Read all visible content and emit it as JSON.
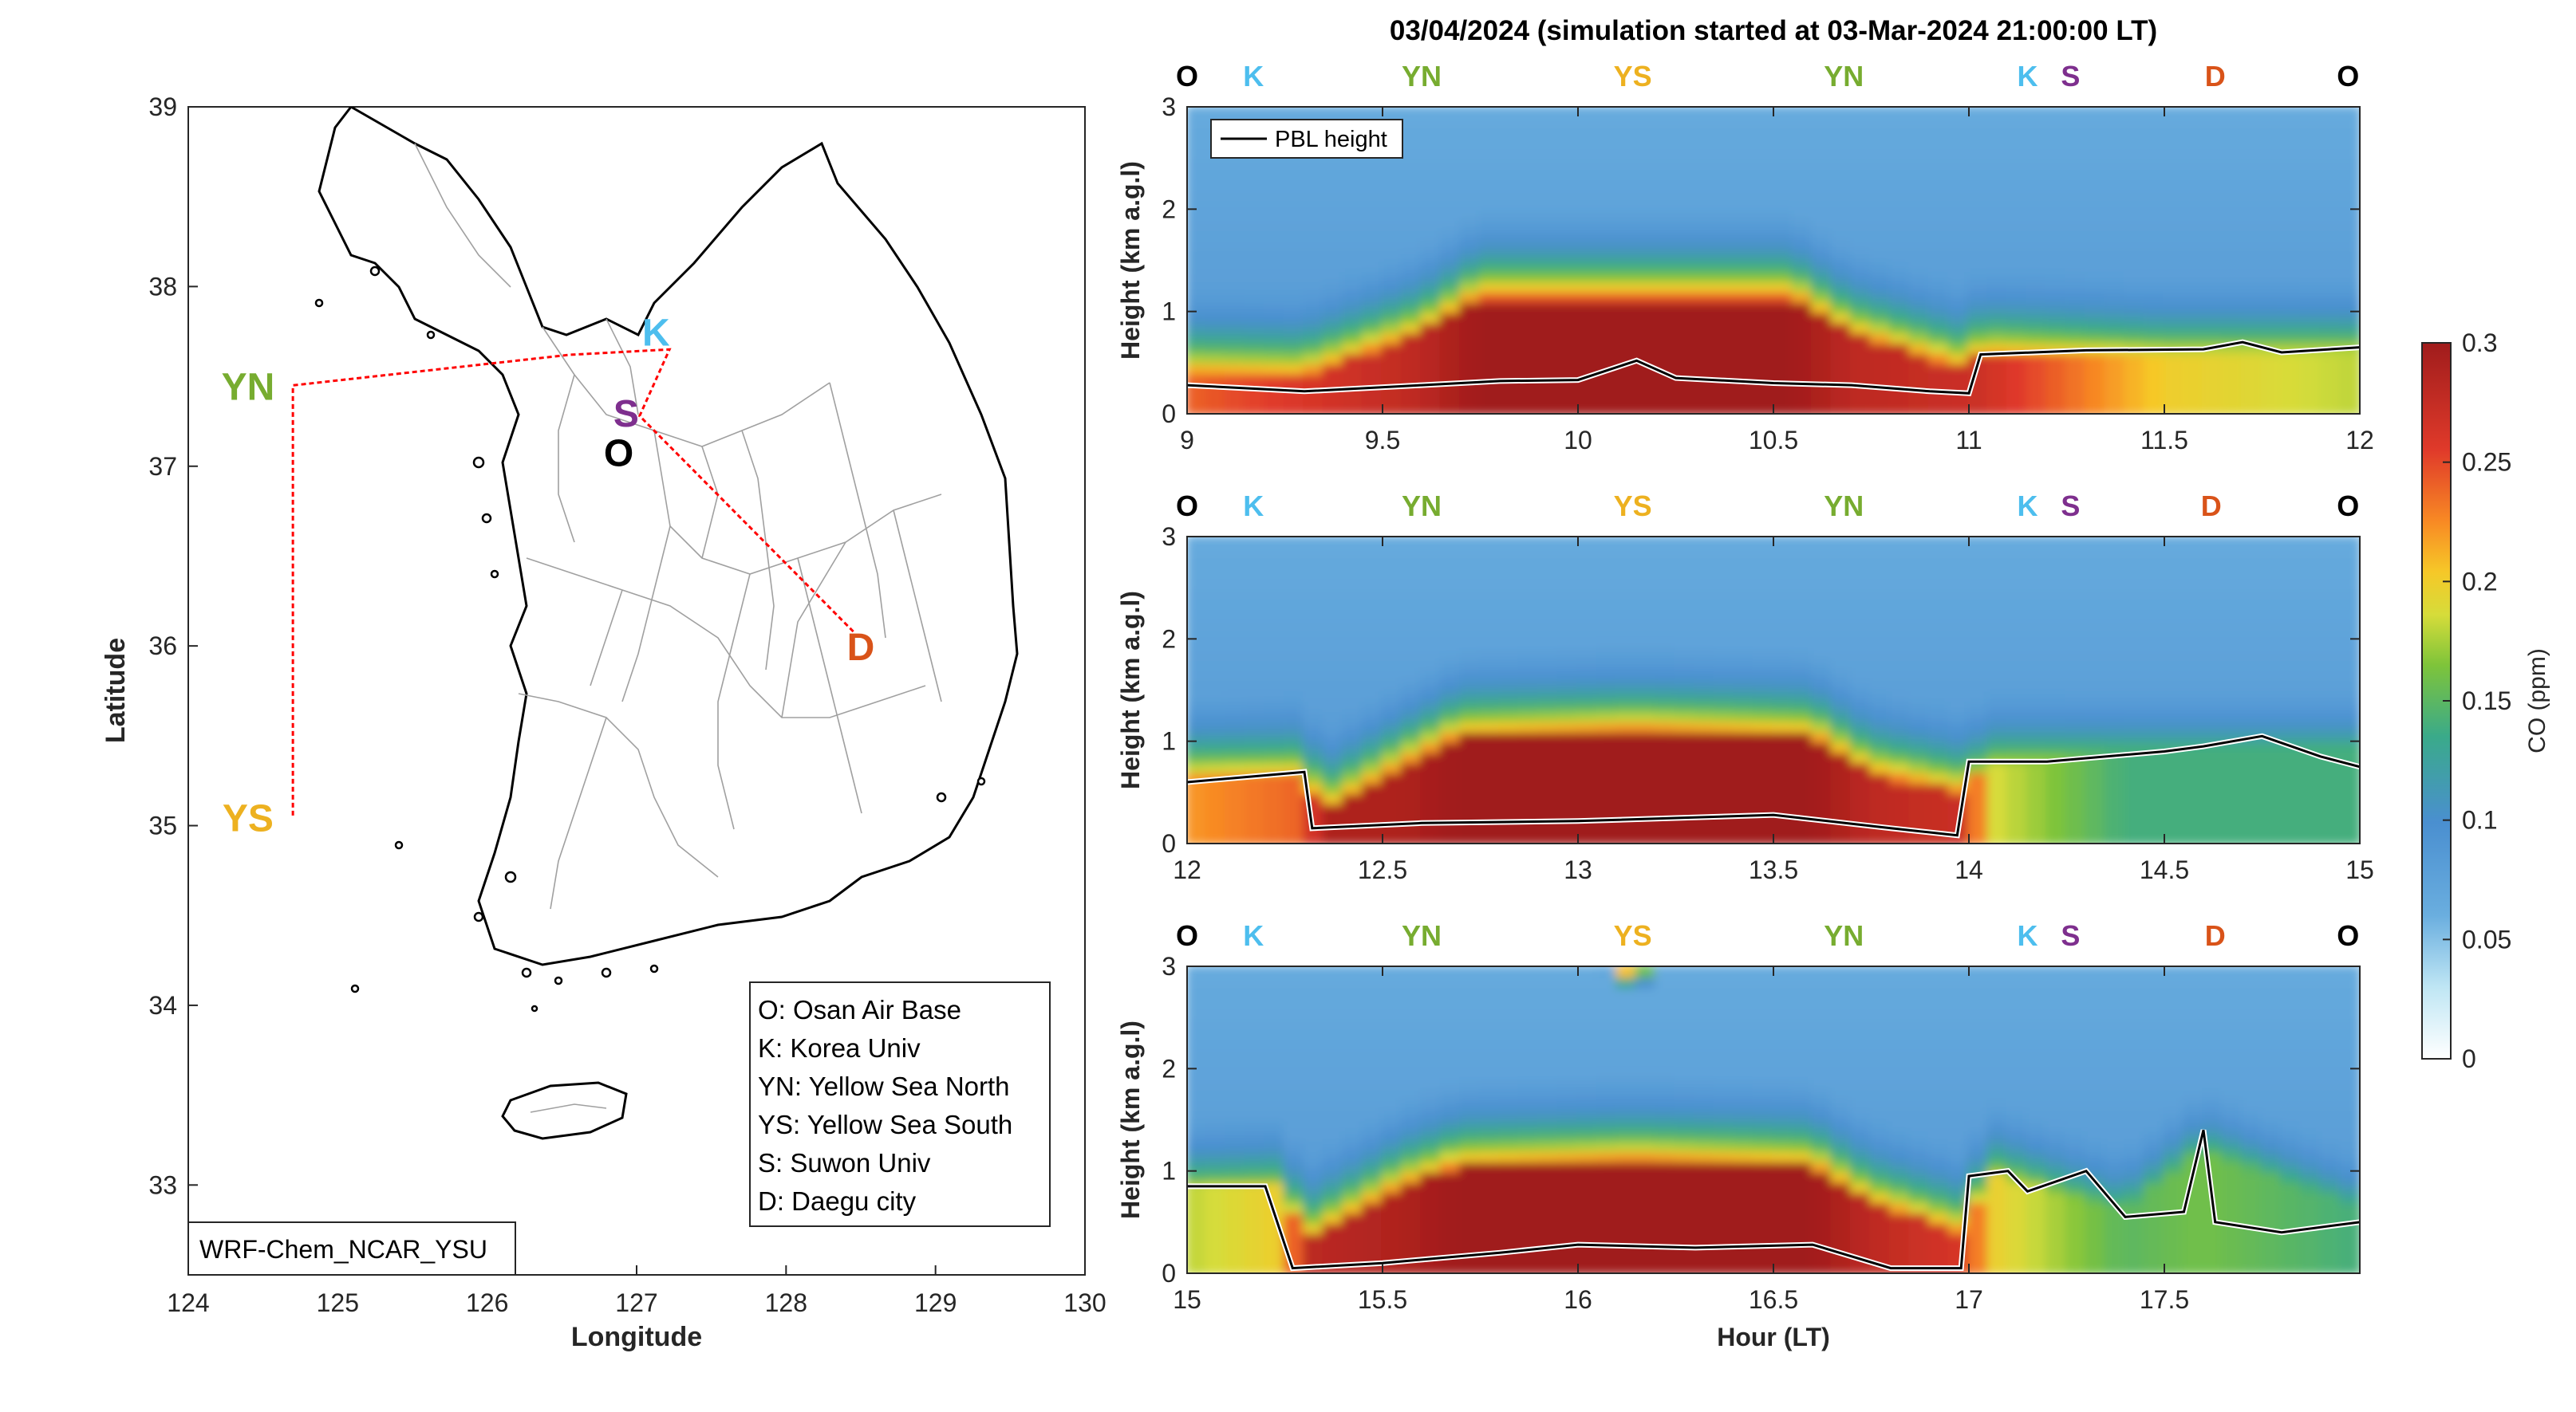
{
  "chart_data": [
    {
      "type": "map",
      "xlabel": "Longitude",
      "ylabel": "Latitude",
      "xlim": [
        124,
        130
      ],
      "ylim": [
        32.5,
        39
      ],
      "xticks": [
        124,
        125,
        126,
        127,
        128,
        129,
        130
      ],
      "yticks": [
        33,
        34,
        35,
        36,
        37,
        38,
        39
      ],
      "model_label": "WRF-Chem_NCAR_YSU",
      "flight_track": [
        [
          128.45,
          36.08
        ],
        [
          127.02,
          37.28
        ],
        [
          127.22,
          37.65
        ],
        [
          126.55,
          37.62
        ],
        [
          124.7,
          37.45
        ],
        [
          124.7,
          35.05
        ]
      ],
      "sites": [
        {
          "code": "YN",
          "lon": 124.4,
          "lat": 37.45,
          "color": "#77ac30"
        },
        {
          "code": "YS",
          "lon": 124.4,
          "lat": 35.05,
          "color": "#edb120"
        },
        {
          "code": "K",
          "lon": 127.13,
          "lat": 37.75,
          "color": "#4dbeee"
        },
        {
          "code": "S",
          "lon": 126.93,
          "lat": 37.3,
          "color": "#7e2f8e"
        },
        {
          "code": "O",
          "lon": 126.88,
          "lat": 37.08,
          "color": "#000000"
        },
        {
          "code": "D",
          "lon": 128.5,
          "lat": 36.0,
          "color": "#d95319"
        }
      ],
      "legend": [
        "O: Osan Air Base",
        "K: Korea Univ",
        "YN: Yellow Sea North",
        "YS: Yellow Sea South",
        "S: Suwon Univ",
        "D: Daegu city"
      ]
    },
    {
      "type": "heatmap",
      "title": "03/04/2024 (simulation started at 03-Mar-2024 21:00:00 LT)",
      "xlabel": "Hour (LT)",
      "ylabel": "Height (km a.g.l)",
      "colorbar_label": "CO (ppm)",
      "clim": [
        0,
        0.3
      ],
      "colorbar_ticks": [
        0,
        0.05,
        0.1,
        0.15,
        0.2,
        0.25,
        0.3
      ],
      "line_legend": "PBL height",
      "panels": [
        {
          "xlim": [
            9,
            12
          ],
          "xticks": [
            "9",
            "9.5",
            "10",
            "10.5",
            "11",
            "11.5",
            "12"
          ],
          "yticks": [
            "0",
            "1",
            "2",
            "3"
          ],
          "site_markers": [
            {
              "code": "O",
              "x": 9.0
            },
            {
              "code": "K",
              "x": 9.17
            },
            {
              "code": "YN",
              "x": 9.6
            },
            {
              "code": "YS",
              "x": 10.14
            },
            {
              "code": "YN",
              "x": 10.68
            },
            {
              "code": "K",
              "x": 11.15
            },
            {
              "code": "S",
              "x": 11.26
            },
            {
              "code": "D",
              "x": 11.63
            },
            {
              "code": "O",
              "x": 11.97
            }
          ],
          "pbl_height": [
            [
              9.0,
              0.28
            ],
            [
              9.3,
              0.22
            ],
            [
              9.6,
              0.28
            ],
            [
              9.8,
              0.32
            ],
            [
              10.0,
              0.33
            ],
            [
              10.15,
              0.52
            ],
            [
              10.25,
              0.35
            ],
            [
              10.5,
              0.3
            ],
            [
              10.7,
              0.28
            ],
            [
              10.9,
              0.22
            ],
            [
              11.0,
              0.2
            ],
            [
              11.03,
              0.58
            ],
            [
              11.3,
              0.62
            ],
            [
              11.6,
              0.63
            ],
            [
              11.7,
              0.7
            ],
            [
              11.8,
              0.6
            ],
            [
              12.0,
              0.65
            ]
          ],
          "co_profile": [
            {
              "x": 9.0,
              "surface": 0.24,
              "top": 0.45
            },
            {
              "x": 9.3,
              "surface": 0.26,
              "top": 0.4
            },
            {
              "x": 9.6,
              "surface": 0.28,
              "top": 0.8
            },
            {
              "x": 9.75,
              "surface": 0.3,
              "top": 1.15
            },
            {
              "x": 10.15,
              "surface": 0.3,
              "top": 1.15
            },
            {
              "x": 10.55,
              "surface": 0.3,
              "top": 1.15
            },
            {
              "x": 10.7,
              "surface": 0.28,
              "top": 0.8
            },
            {
              "x": 11.0,
              "surface": 0.27,
              "top": 0.45
            },
            {
              "x": 11.03,
              "surface": 0.27,
              "top": 0.6
            },
            {
              "x": 11.5,
              "surface": 0.2,
              "top": 0.62
            },
            {
              "x": 12.0,
              "surface": 0.18,
              "top": 0.65
            }
          ]
        },
        {
          "xlim": [
            12,
            15
          ],
          "xticks": [
            "12",
            "12.5",
            "13",
            "13.5",
            "14",
            "14.5",
            "15"
          ],
          "yticks": [
            "0",
            "1",
            "2",
            "3"
          ],
          "site_markers": [
            {
              "code": "O",
              "x": 12.0
            },
            {
              "code": "K",
              "x": 12.17
            },
            {
              "code": "YN",
              "x": 12.6
            },
            {
              "code": "YS",
              "x": 13.14
            },
            {
              "code": "YN",
              "x": 13.68
            },
            {
              "code": "K",
              "x": 14.15
            },
            {
              "code": "S",
              "x": 14.26
            },
            {
              "code": "D",
              "x": 14.62
            },
            {
              "code": "O",
              "x": 14.97
            }
          ],
          "pbl_height": [
            [
              12.0,
              0.6
            ],
            [
              12.15,
              0.65
            ],
            [
              12.3,
              0.7
            ],
            [
              12.32,
              0.15
            ],
            [
              12.6,
              0.2
            ],
            [
              13.0,
              0.22
            ],
            [
              13.5,
              0.28
            ],
            [
              13.8,
              0.15
            ],
            [
              13.97,
              0.08
            ],
            [
              14.0,
              0.8
            ],
            [
              14.2,
              0.8
            ],
            [
              14.5,
              0.9
            ],
            [
              14.6,
              0.95
            ],
            [
              14.75,
              1.05
            ],
            [
              14.9,
              0.85
            ],
            [
              15.0,
              0.75
            ]
          ],
          "co_profile": [
            {
              "x": 12.0,
              "surface": 0.22,
              "top": 0.7
            },
            {
              "x": 12.3,
              "surface": 0.24,
              "top": 0.7
            },
            {
              "x": 12.35,
              "surface": 0.29,
              "top": 0.3
            },
            {
              "x": 12.55,
              "surface": 0.29,
              "top": 0.75
            },
            {
              "x": 12.7,
              "surface": 0.3,
              "top": 1.05
            },
            {
              "x": 13.15,
              "surface": 0.3,
              "top": 1.1
            },
            {
              "x": 13.6,
              "surface": 0.3,
              "top": 1.05
            },
            {
              "x": 13.75,
              "surface": 0.28,
              "top": 0.7
            },
            {
              "x": 14.0,
              "surface": 0.27,
              "top": 0.5
            },
            {
              "x": 14.05,
              "surface": 0.19,
              "top": 0.8
            },
            {
              "x": 14.4,
              "surface": 0.14,
              "top": 0.9
            },
            {
              "x": 15.0,
              "surface": 0.14,
              "top": 0.9
            }
          ]
        },
        {
          "xlim": [
            15,
            18
          ],
          "xticks": [
            "15",
            "15.5",
            "16",
            "16.5",
            "17",
            "17.5"
          ],
          "yticks": [
            "0",
            "1",
            "2",
            "3"
          ],
          "site_markers": [
            {
              "code": "O",
              "x": 15.0
            },
            {
              "code": "K",
              "x": 15.17
            },
            {
              "code": "YN",
              "x": 15.6
            },
            {
              "code": "YS",
              "x": 16.14
            },
            {
              "code": "YN",
              "x": 16.68
            },
            {
              "code": "K",
              "x": 17.15
            },
            {
              "code": "S",
              "x": 17.26
            },
            {
              "code": "D",
              "x": 17.63
            },
            {
              "code": "O",
              "x": 17.97
            }
          ],
          "pbl_height": [
            [
              15.0,
              0.85
            ],
            [
              15.2,
              0.85
            ],
            [
              15.27,
              0.05
            ],
            [
              15.5,
              0.1
            ],
            [
              15.8,
              0.2
            ],
            [
              16.0,
              0.28
            ],
            [
              16.3,
              0.25
            ],
            [
              16.6,
              0.28
            ],
            [
              16.8,
              0.05
            ],
            [
              16.98,
              0.05
            ],
            [
              17.0,
              0.95
            ],
            [
              17.1,
              1.0
            ],
            [
              17.15,
              0.8
            ],
            [
              17.3,
              1.0
            ],
            [
              17.4,
              0.55
            ],
            [
              17.55,
              0.6
            ],
            [
              17.6,
              1.4
            ],
            [
              17.63,
              0.5
            ],
            [
              17.8,
              0.4
            ],
            [
              18.0,
              0.5
            ]
          ],
          "co_profile": [
            {
              "x": 15.0,
              "surface": 0.18,
              "top": 0.85
            },
            {
              "x": 15.25,
              "surface": 0.2,
              "top": 0.85
            },
            {
              "x": 15.3,
              "surface": 0.28,
              "top": 0.3
            },
            {
              "x": 15.55,
              "surface": 0.29,
              "top": 0.85
            },
            {
              "x": 15.7,
              "surface": 0.3,
              "top": 1.05
            },
            {
              "x": 16.15,
              "surface": 0.3,
              "top": 1.1
            },
            {
              "x": 16.6,
              "surface": 0.3,
              "top": 1.05
            },
            {
              "x": 16.75,
              "surface": 0.28,
              "top": 0.7
            },
            {
              "x": 17.0,
              "surface": 0.26,
              "top": 0.4
            },
            {
              "x": 17.05,
              "surface": 0.2,
              "top": 1.0
            },
            {
              "x": 17.4,
              "surface": 0.15,
              "top": 0.6
            },
            {
              "x": 17.6,
              "surface": 0.16,
              "top": 1.2
            },
            {
              "x": 18.0,
              "surface": 0.14,
              "top": 0.6
            }
          ],
          "elevated_plume": {
            "x": 16.14,
            "height": 2.95,
            "value": 0.22
          }
        }
      ]
    }
  ],
  "colors": {
    "YN": "#77ac30",
    "YS": "#edb120",
    "K": "#4dbeee",
    "S": "#7e2f8e",
    "O": "#000000",
    "D": "#d95319",
    "track": "#ff0000"
  }
}
